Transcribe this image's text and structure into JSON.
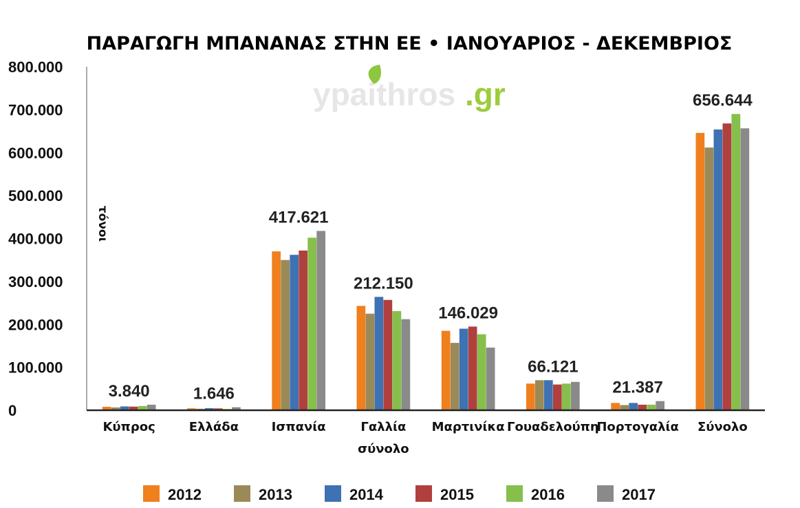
{
  "watermark": {
    "name": "ypaithros",
    "tld": ".gr",
    "colors": {
      "name": "#e6e6e6",
      "tld": "#9ccc3c",
      "leaf": "#8dc63f"
    }
  },
  "chart_data": {
    "type": "bar",
    "title": "ΠΑΡΑΓΩΓΗ ΜΠΑΝΑΝΑΣ ΣΤΗΝ ΕΕ • ΙΑΝΟΥΑΡΙΟΣ - ΔΕΚΕΜΒΡΙΟΣ",
    "ylabel": "τόνοι",
    "xlabel": "",
    "ylim": [
      0,
      800000
    ],
    "yticks": [
      "0",
      "100.000",
      "200.000",
      "300.000",
      "400.000",
      "500.000",
      "600.000",
      "700.000",
      "800.000"
    ],
    "categories": [
      [
        "Κύπρος"
      ],
      [
        "Ελλάδα"
      ],
      [
        "Ισπανία"
      ],
      [
        "Γαλλία",
        "σύνολο"
      ],
      [
        "Μαρτινίκα"
      ],
      [
        "Γουαδελούπη"
      ],
      [
        "Πορτογαλία"
      ],
      [
        "Σύνολο"
      ]
    ],
    "data_labels": [
      "3.840",
      "1.646",
      "417.621",
      "212.150",
      "146.029",
      "66.121",
      "21.387",
      "656.644"
    ],
    "legend_position": "bottom",
    "grid": false,
    "series": [
      {
        "name": "2012",
        "color": "#f07f1e",
        "values": [
          8000,
          4500,
          370000,
          243000,
          185000,
          62000,
          17000,
          646000
        ]
      },
      {
        "name": "2013",
        "color": "#9a8a57",
        "values": [
          6500,
          3500,
          350000,
          225000,
          157000,
          70000,
          12000,
          612000
        ]
      },
      {
        "name": "2014",
        "color": "#3e72b2",
        "values": [
          9000,
          4800,
          362000,
          264000,
          190000,
          70000,
          17000,
          654000
        ]
      },
      {
        "name": "2015",
        "color": "#b0403e",
        "values": [
          8500,
          4300,
          372000,
          257000,
          195000,
          60000,
          13000,
          668000
        ]
      },
      {
        "name": "2016",
        "color": "#86bf4b",
        "values": [
          10000,
          3000,
          402000,
          231000,
          177000,
          62000,
          13000,
          690000
        ]
      },
      {
        "name": "2017",
        "color": "#8a8a8a",
        "values": [
          13000,
          7000,
          417621,
          212150,
          146029,
          66121,
          21387,
          656644
        ]
      }
    ]
  }
}
